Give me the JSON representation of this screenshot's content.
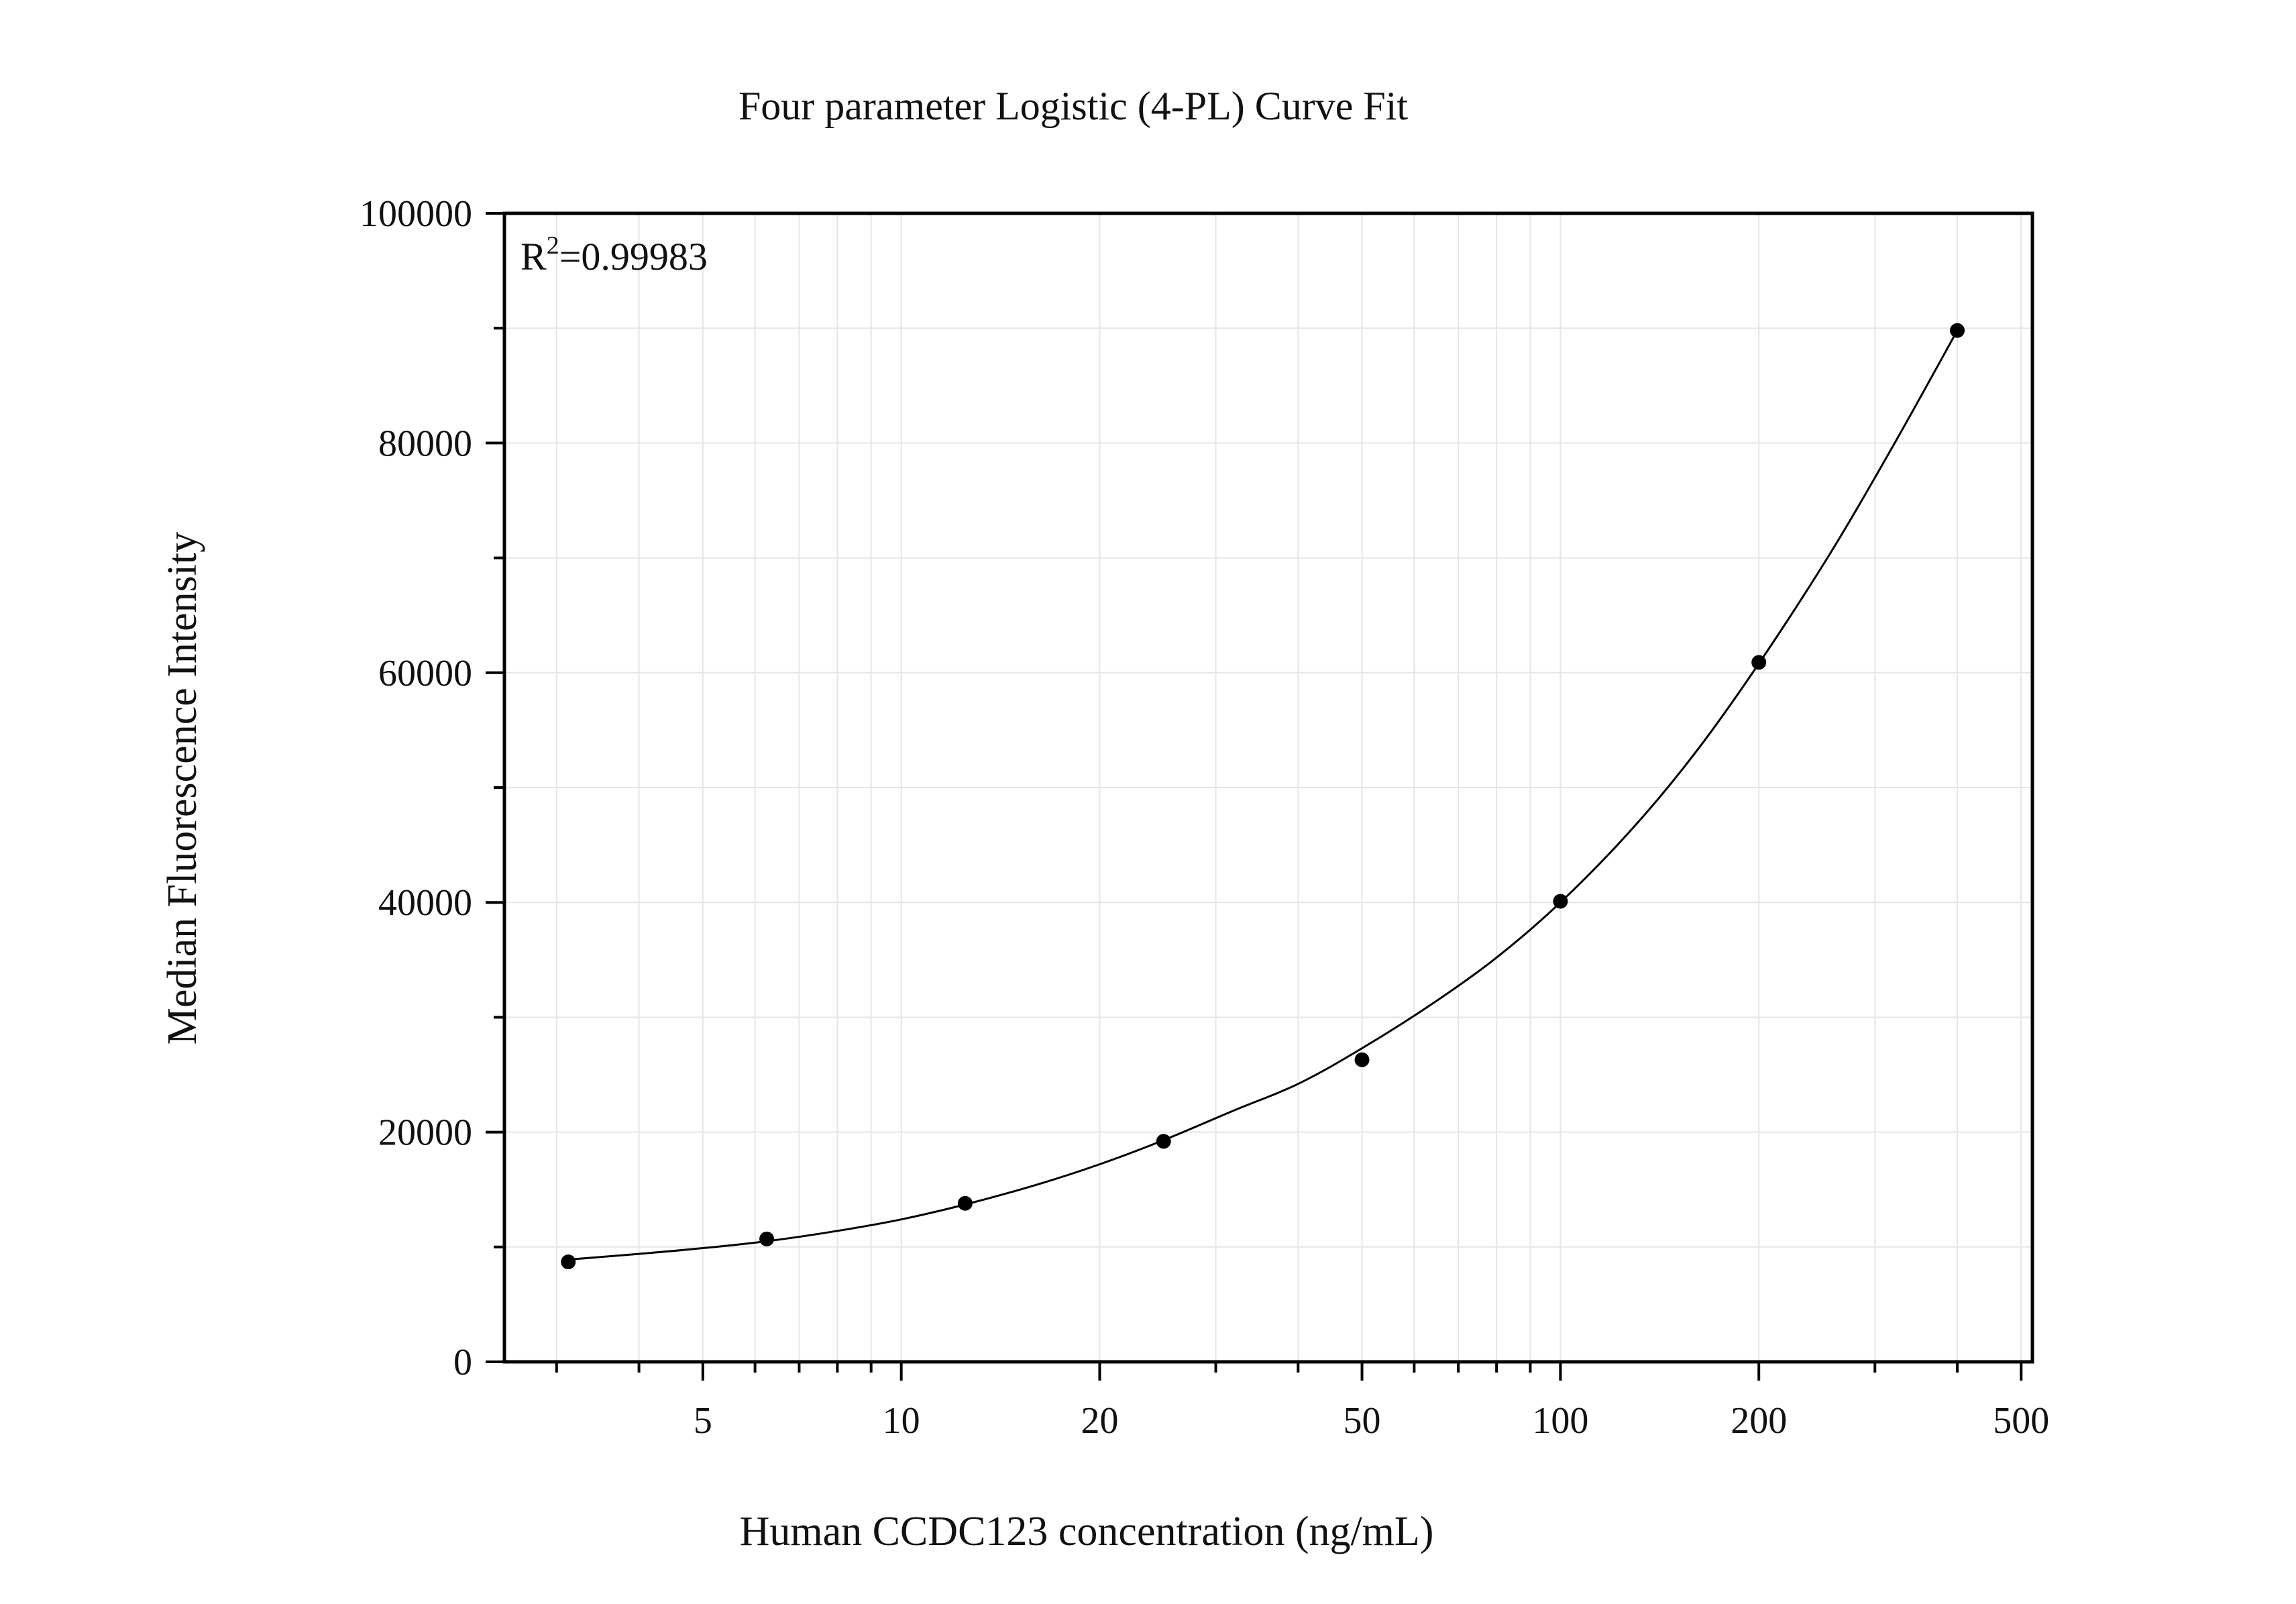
{
  "chart_data": {
    "type": "scatter",
    "title": "Four parameter Logistic (4-PL) Curve Fit",
    "xlabel": "Human CCDC123 concentration (ng/mL)",
    "ylabel": "Median Fluorescence Intensity",
    "x_scale": "log",
    "xlim": [
      2.5,
      520
    ],
    "ylim": [
      0,
      100000
    ],
    "x_ticks": [
      5,
      10,
      20,
      50,
      100,
      200,
      500
    ],
    "y_ticks": [
      0,
      20000,
      40000,
      60000,
      80000,
      100000
    ],
    "grid": true,
    "annotation": {
      "prefix": "R",
      "superscript": "2",
      "value": "=0.99983"
    },
    "series": [
      {
        "type": "scatter",
        "x": [
          3.125,
          6.25,
          12.5,
          25,
          50,
          100,
          200,
          400
        ],
        "y": [
          8700,
          10700,
          13800,
          19200,
          26300,
          40100,
          60900,
          89800
        ]
      },
      {
        "type": "line",
        "fit": "4-PL curve",
        "x": [
          3.125,
          4,
          5,
          6.25,
          8,
          10,
          12.5,
          16,
          20,
          25,
          32,
          40,
          50,
          64,
          80,
          100,
          128,
          160,
          200,
          256,
          320,
          400
        ],
        "y": [
          8900,
          9400,
          9900,
          10500,
          11400,
          12400,
          13700,
          15400,
          17200,
          19300,
          21900,
          24200,
          27300,
          31200,
          35200,
          40000,
          46300,
          53000,
          60800,
          70300,
          79800,
          89800
        ]
      }
    ]
  }
}
